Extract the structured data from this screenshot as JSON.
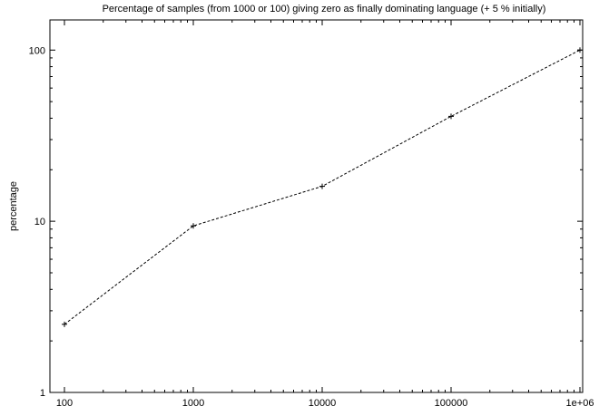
{
  "chart_data": {
    "type": "line",
    "title": "Percentage of samples (from 1000 or 100) giving zero as finally dominating language (+ 5 % initially)",
    "xlabel": "",
    "ylabel": "percentage",
    "x_scale": "log",
    "y_scale": "log",
    "xlim": [
      100,
      1000000
    ],
    "ylim": [
      1,
      150
    ],
    "x_ticks": [
      100,
      1000,
      10000,
      100000,
      1000000
    ],
    "x_tick_labels": [
      "100",
      "1000",
      "10000",
      "100000",
      "1e+06"
    ],
    "y_ticks": [
      1,
      10,
      100
    ],
    "y_tick_labels": [
      "1",
      "10",
      "100"
    ],
    "grid": false,
    "legend": "none",
    "series": [
      {
        "x": [
          100,
          1000,
          10000,
          100000,
          1000000
        ],
        "y": [
          2.5,
          9.4,
          16,
          41,
          100
        ]
      }
    ]
  }
}
